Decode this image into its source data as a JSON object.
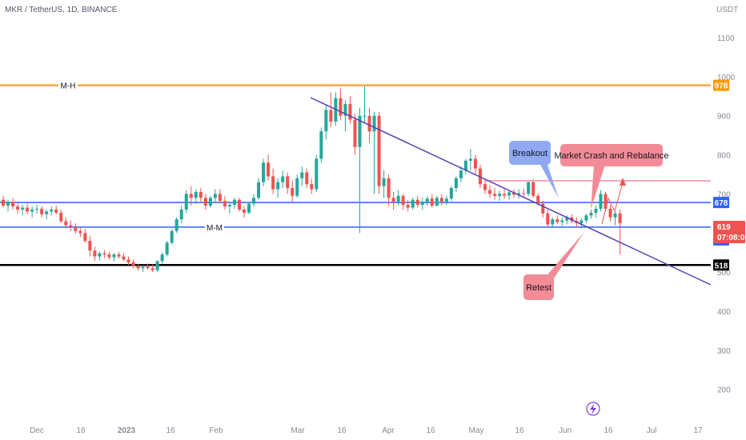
{
  "header": {
    "symbol_line": "MKR / TetherUS, 1D, BINANCE",
    "unit": "USDT"
  },
  "colors": {
    "up": "#26a69a",
    "down": "#ef5350",
    "orange": "#ff9800",
    "blue": "#2962ff",
    "black": "#000000",
    "purple": "#5b3fb3",
    "pink": "#f7a8b8",
    "blue_callout": "#8fa9f2",
    "red_callout": "#f28b96",
    "lightning": "#7b3fe4"
  },
  "chart_data": {
    "type": "candlestick",
    "ylim": [
      150,
      1200
    ],
    "y_ticks": [
      "1100",
      "1000",
      "900",
      "800",
      "700",
      "600",
      "500",
      "400",
      "300",
      "200"
    ],
    "x_ticks": [
      "Dec",
      "16",
      "2023",
      "16",
      "Feb",
      "Mar",
      "16",
      "Apr",
      "16",
      "May",
      "16",
      "Jun",
      "16",
      "Jul",
      "17"
    ],
    "series": [
      {
        "type": "ohlc",
        "ohlc": [
          [
            685,
            695,
            665,
            670
          ],
          [
            670,
            685,
            655,
            680
          ],
          [
            680,
            690,
            660,
            668
          ],
          [
            668,
            675,
            650,
            660
          ],
          [
            660,
            672,
            645,
            665
          ],
          [
            665,
            675,
            648,
            655
          ],
          [
            655,
            668,
            640,
            660
          ],
          [
            660,
            672,
            650,
            662
          ],
          [
            662,
            668,
            640,
            648
          ],
          [
            648,
            660,
            635,
            655
          ],
          [
            655,
            668,
            645,
            660
          ],
          [
            660,
            670,
            648,
            652
          ],
          [
            652,
            660,
            625,
            630
          ],
          [
            630,
            640,
            612,
            620
          ],
          [
            620,
            632,
            605,
            615
          ],
          [
            615,
            625,
            598,
            605
          ],
          [
            605,
            615,
            590,
            600
          ],
          [
            600,
            610,
            575,
            580
          ],
          [
            580,
            592,
            540,
            555
          ],
          [
            555,
            565,
            528,
            540
          ],
          [
            540,
            552,
            530,
            548
          ],
          [
            548,
            556,
            536,
            545
          ],
          [
            545,
            552,
            532,
            538
          ],
          [
            538,
            548,
            528,
            545
          ],
          [
            545,
            552,
            535,
            540
          ],
          [
            540,
            548,
            528,
            532
          ],
          [
            532,
            540,
            518,
            525
          ],
          [
            525,
            532,
            510,
            515
          ],
          [
            515,
            522,
            504,
            510
          ],
          [
            510,
            518,
            500,
            514
          ],
          [
            514,
            522,
            506,
            510
          ],
          [
            510,
            520,
            500,
            505
          ],
          [
            505,
            530,
            500,
            528
          ],
          [
            528,
            550,
            522,
            545
          ],
          [
            545,
            580,
            540,
            575
          ],
          [
            575,
            610,
            570,
            605
          ],
          [
            605,
            640,
            600,
            635
          ],
          [
            635,
            670,
            625,
            660
          ],
          [
            660,
            710,
            650,
            700
          ],
          [
            700,
            720,
            670,
            690
          ],
          [
            690,
            712,
            675,
            705
          ],
          [
            705,
            715,
            680,
            690
          ],
          [
            690,
            700,
            660,
            670
          ],
          [
            670,
            695,
            665,
            690
          ],
          [
            690,
            712,
            680,
            700
          ],
          [
            700,
            712,
            675,
            682
          ],
          [
            682,
            695,
            660,
            668
          ],
          [
            668,
            680,
            650,
            672
          ],
          [
            672,
            690,
            662,
            685
          ],
          [
            685,
            690,
            655,
            660
          ],
          [
            660,
            668,
            640,
            652
          ],
          [
            652,
            680,
            648,
            675
          ],
          [
            675,
            700,
            668,
            690
          ],
          [
            690,
            740,
            685,
            730
          ],
          [
            730,
            790,
            720,
            780
          ],
          [
            780,
            800,
            735,
            745
          ],
          [
            745,
            765,
            700,
            712
          ],
          [
            712,
            740,
            690,
            730
          ],
          [
            730,
            760,
            715,
            745
          ],
          [
            745,
            755,
            700,
            715
          ],
          [
            715,
            735,
            680,
            695
          ],
          [
            695,
            750,
            690,
            740
          ],
          [
            740,
            770,
            720,
            755
          ],
          [
            755,
            765,
            715,
            725
          ],
          [
            725,
            740,
            700,
            712
          ],
          [
            712,
            800,
            705,
            790
          ],
          [
            790,
            870,
            780,
            860
          ],
          [
            860,
            930,
            840,
            915
          ],
          [
            915,
            960,
            870,
            885
          ],
          [
            885,
            960,
            875,
            945
          ],
          [
            945,
            970,
            890,
            900
          ],
          [
            900,
            940,
            860,
            930
          ],
          [
            930,
            950,
            880,
            890
          ],
          [
            890,
            905,
            800,
            820
          ],
          [
            820,
            920,
            600,
            900
          ],
          [
            900,
            975,
            880,
            900
          ],
          [
            900,
            920,
            830,
            860
          ],
          [
            860,
            910,
            700,
            900
          ],
          [
            900,
            910,
            700,
            720
          ],
          [
            720,
            760,
            690,
            740
          ],
          [
            740,
            750,
            670,
            690
          ],
          [
            690,
            705,
            660,
            680
          ],
          [
            680,
            710,
            670,
            695
          ],
          [
            695,
            700,
            660,
            672
          ],
          [
            672,
            685,
            655,
            665
          ],
          [
            665,
            690,
            660,
            685
          ],
          [
            685,
            695,
            665,
            672
          ],
          [
            672,
            690,
            660,
            680
          ],
          [
            680,
            695,
            670,
            688
          ],
          [
            688,
            700,
            665,
            670
          ],
          [
            670,
            695,
            668,
            690
          ],
          [
            690,
            700,
            670,
            680
          ],
          [
            680,
            695,
            672,
            688
          ],
          [
            688,
            720,
            682,
            715
          ],
          [
            715,
            745,
            705,
            740
          ],
          [
            740,
            770,
            730,
            760
          ],
          [
            760,
            790,
            750,
            785
          ],
          [
            785,
            815,
            760,
            790
          ],
          [
            790,
            800,
            750,
            765
          ],
          [
            765,
            775,
            715,
            725
          ],
          [
            725,
            740,
            700,
            710
          ],
          [
            710,
            722,
            690,
            700
          ],
          [
            700,
            715,
            685,
            695
          ],
          [
            695,
            708,
            682,
            700
          ],
          [
            700,
            712,
            688,
            696
          ],
          [
            696,
            708,
            685,
            704
          ],
          [
            704,
            712,
            690,
            698
          ],
          [
            698,
            712,
            688,
            702
          ],
          [
            702,
            714,
            690,
            700
          ],
          [
            700,
            735,
            695,
            730
          ],
          [
            730,
            738,
            690,
            695
          ],
          [
            695,
            702,
            670,
            675
          ],
          [
            675,
            682,
            640,
            650
          ],
          [
            650,
            660,
            615,
            622
          ],
          [
            622,
            640,
            615,
            635
          ],
          [
            635,
            645,
            622,
            628
          ],
          [
            628,
            640,
            618,
            632
          ],
          [
            632,
            645,
            622,
            640
          ],
          [
            640,
            648,
            625,
            630
          ],
          [
            630,
            640,
            615,
            625
          ],
          [
            625,
            638,
            612,
            632
          ],
          [
            632,
            650,
            625,
            645
          ],
          [
            645,
            660,
            636,
            652
          ],
          [
            652,
            670,
            640,
            662
          ],
          [
            662,
            710,
            655,
            700
          ],
          [
            700,
            706,
            655,
            662
          ],
          [
            662,
            672,
            630,
            640
          ],
          [
            640,
            655,
            620,
            650
          ],
          [
            650,
            660,
            545,
            625
          ]
        ]
      }
    ],
    "levels": [
      {
        "name": "M-H",
        "value": 978,
        "badge": "978"
      },
      {
        "name": "",
        "value": 678,
        "badge": "678"
      },
      {
        "name": "M-M",
        "value": 615,
        "badge": "615"
      },
      {
        "name": "",
        "value": 518,
        "badge": "518"
      }
    ],
    "last_price": {
      "value": "619",
      "countdown": "07:08:01"
    },
    "annotations": {
      "breakout": "Breakout",
      "crash": "Market Crash and Rebalance",
      "retest": "Retest"
    }
  }
}
